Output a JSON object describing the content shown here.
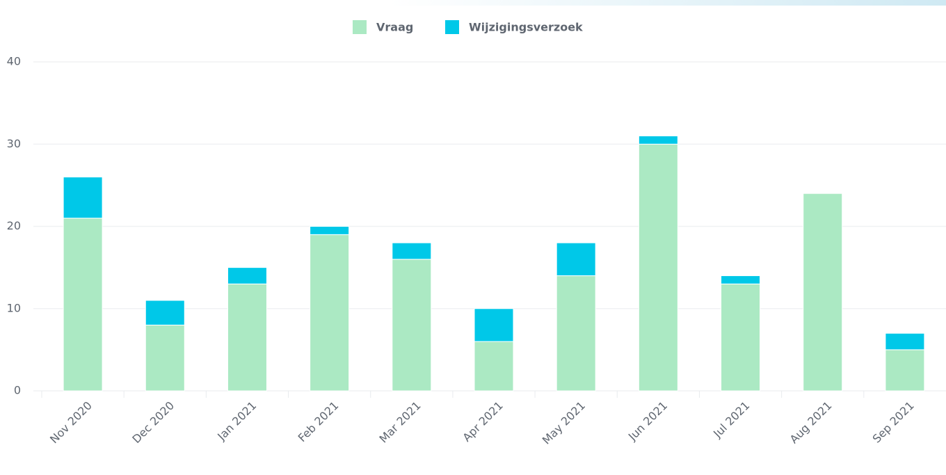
{
  "chart_data": {
    "type": "stacked_bar",
    "categories": [
      "Nov 2020",
      "Dec 2020",
      "Jan 2021",
      "Feb 2021",
      "Mar 2021",
      "Apr 2021",
      "May 2021",
      "Jun 2021",
      "Jul 2021",
      "Aug 2021",
      "Sep 2021"
    ],
    "series": [
      {
        "name": "Vraag",
        "color": "#abe9c3",
        "values": [
          21,
          8,
          13,
          19,
          16,
          6,
          14,
          30,
          13,
          24,
          5
        ]
      },
      {
        "name": "Wijzigingsverzoek",
        "color": "#00c8e8",
        "values": [
          5,
          3,
          2,
          1,
          2,
          4,
          4,
          1,
          1,
          0,
          2
        ]
      }
    ],
    "ylim": [
      0,
      40
    ],
    "yticks": [
      0,
      10,
      20,
      30,
      40
    ],
    "grid": true,
    "legend": "top"
  }
}
